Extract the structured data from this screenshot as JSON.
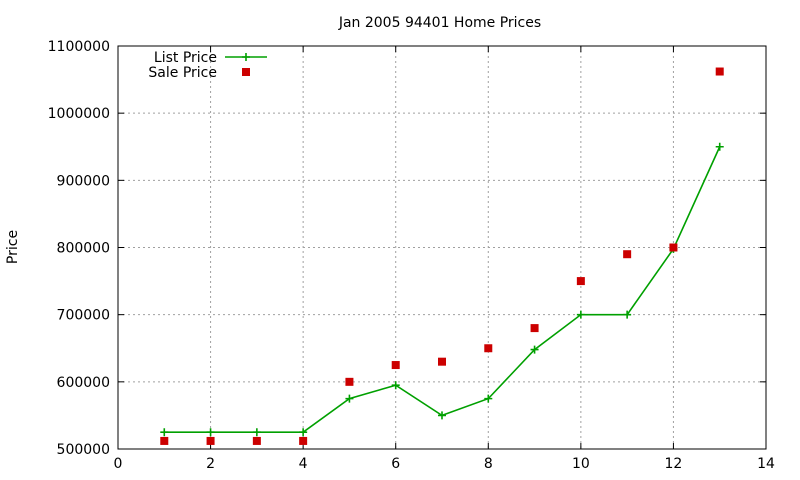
{
  "chart_data": {
    "type": "line",
    "title": "Jan 2005 94401 Home Prices",
    "xlabel": "",
    "ylabel": "Price",
    "xlim": [
      0,
      14
    ],
    "ylim": [
      500000,
      1100000
    ],
    "xticks": [
      0,
      2,
      4,
      6,
      8,
      10,
      12,
      14
    ],
    "yticks": [
      500000,
      600000,
      700000,
      800000,
      900000,
      1000000,
      1100000
    ],
    "grid": true,
    "legend_position": "top-left",
    "series": [
      {
        "name": "List Price",
        "style": "lines+points",
        "color": "#00a000",
        "x": [
          1,
          2,
          3,
          4,
          5,
          6,
          7,
          8,
          9,
          10,
          11,
          12,
          13
        ],
        "y": [
          525000,
          525000,
          525000,
          525000,
          575000,
          595000,
          550000,
          575000,
          648000,
          700000,
          700000,
          798000,
          950000
        ]
      },
      {
        "name": "Sale Price",
        "style": "points",
        "color": "#cc0000",
        "x": [
          1,
          2,
          3,
          4,
          5,
          6,
          7,
          8,
          9,
          10,
          11,
          12,
          13
        ],
        "y": [
          512000,
          512000,
          512000,
          512000,
          600000,
          625000,
          630000,
          650000,
          680000,
          750000,
          790000,
          800000,
          1062000
        ]
      }
    ]
  }
}
